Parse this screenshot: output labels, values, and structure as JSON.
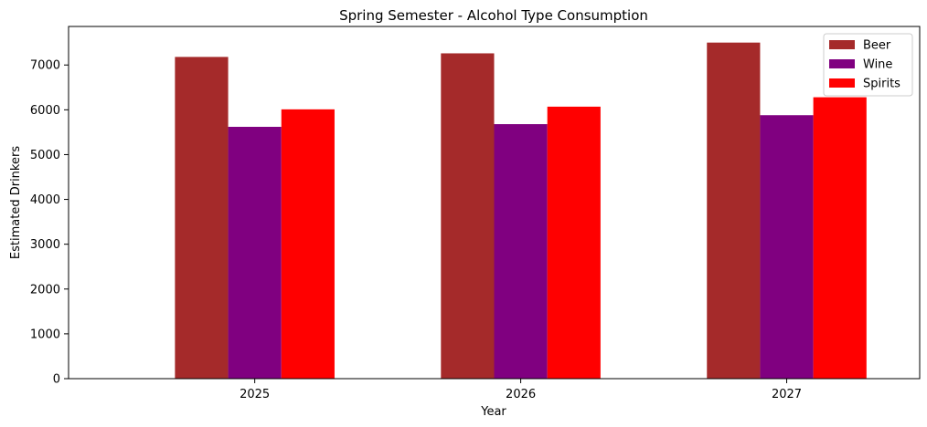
{
  "chart_data": {
    "type": "bar",
    "title": "Spring Semester - Alcohol Type Consumption",
    "xlabel": "Year",
    "ylabel": "Estimated Drinkers",
    "categories": [
      "2025",
      "2026",
      "2027"
    ],
    "series": [
      {
        "name": "Beer",
        "color": "#a52a2a",
        "values": [
          7180,
          7260,
          7500
        ]
      },
      {
        "name": "Wine",
        "color": "#800080",
        "values": [
          5620,
          5680,
          5880
        ]
      },
      {
        "name": "Spirits",
        "color": "#ff0000",
        "values": [
          6010,
          6070,
          6280
        ]
      }
    ],
    "ylim": [
      0,
      7860
    ],
    "yticks": [
      0,
      1000,
      2000,
      3000,
      4000,
      5000,
      6000,
      7000
    ],
    "grid": false,
    "legend": "top-right"
  }
}
